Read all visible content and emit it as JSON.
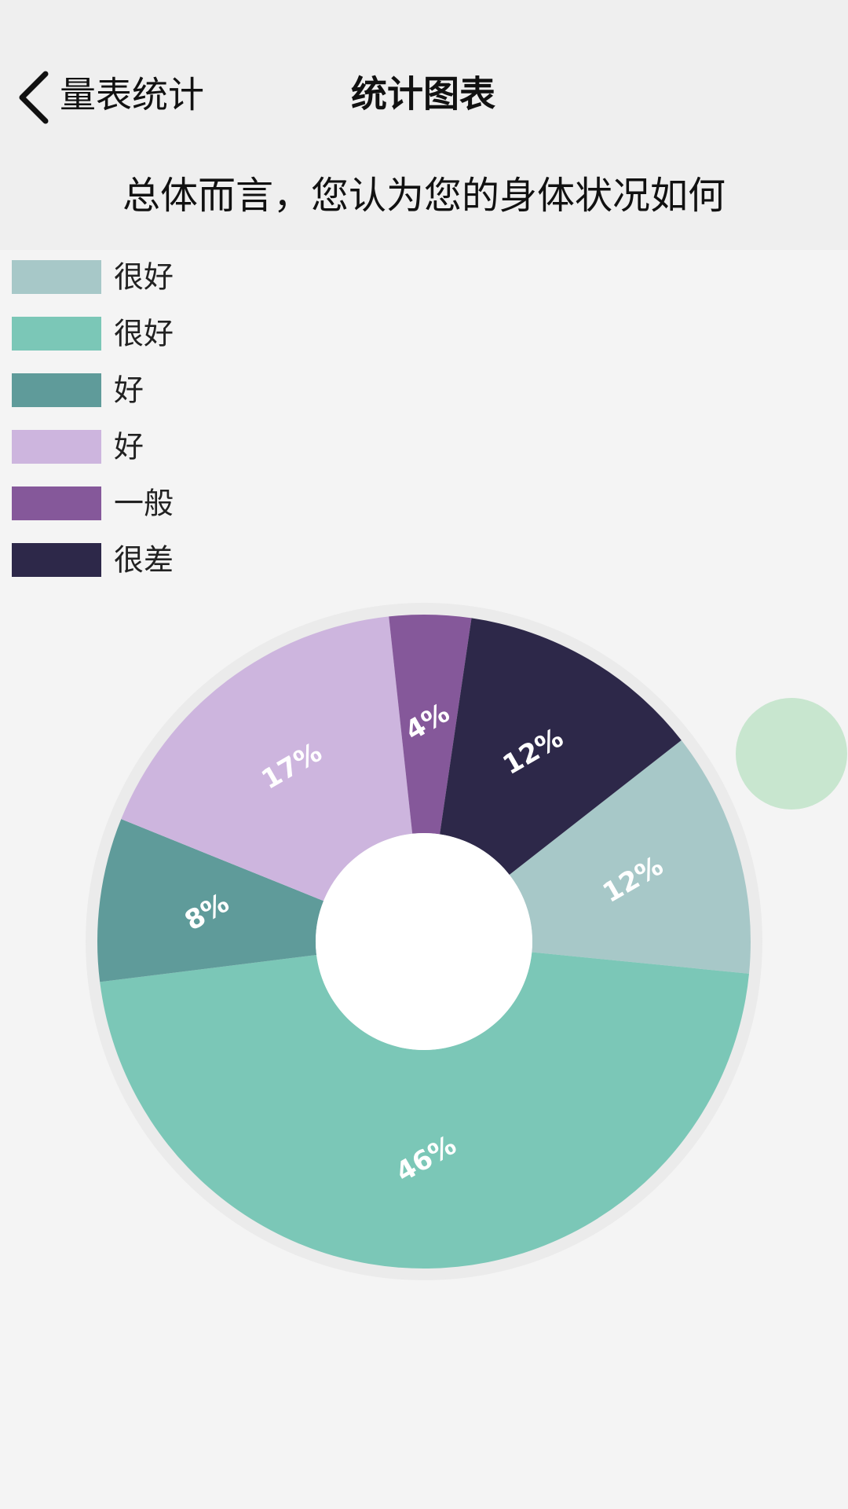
{
  "header": {
    "back": "量表统计",
    "title": "统计图表"
  },
  "chart_data": {
    "type": "pie",
    "title": "总体而言，您认为您的身体状况如何",
    "categories": [
      "很好",
      "很好",
      "好",
      "好",
      "一般",
      "很差"
    ],
    "values": [
      12,
      46,
      8,
      17,
      4,
      12
    ],
    "value_labels": [
      "12%",
      "46%",
      "8%",
      "17%",
      "4%",
      "12%"
    ],
    "colors": [
      "#a7c8c8",
      "#7bc7b7",
      "#5f9b9a",
      "#cdb5de",
      "#85589a",
      "#2d2849"
    ],
    "donut": true
  }
}
